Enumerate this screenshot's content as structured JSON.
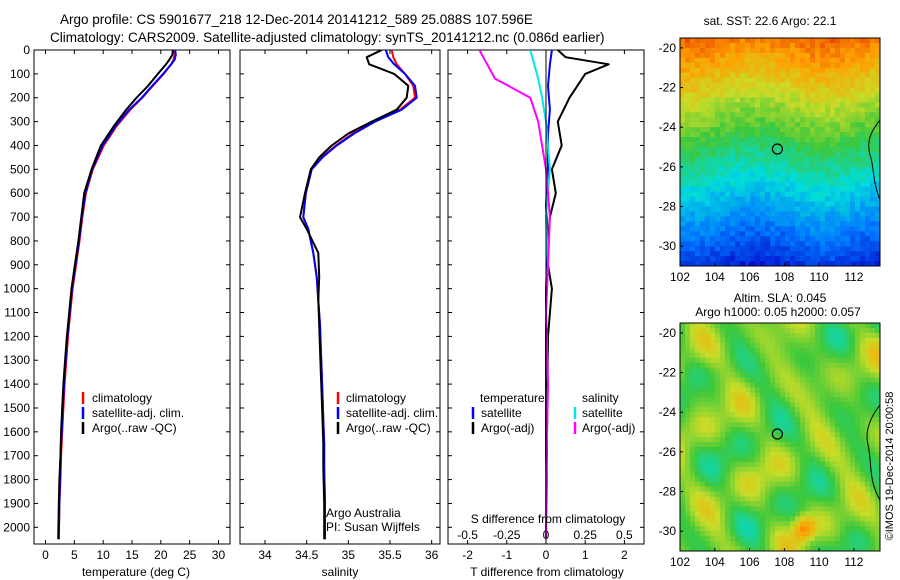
{
  "header": {
    "line1": "Argo profile: CS 5901677_218 12-Dec-2014 20141212_589 25.088S 107.596E",
    "line2": "Climatology: CARS2009. Satellite-adjusted climatology: synTS_20141212.nc (0.086d earlier)"
  },
  "side_credit": "©IMOS 19-Dec-2014 20:00:58",
  "colors": {
    "climatology": "#ff0000",
    "satellite": "#0000ff",
    "argo": "#000000",
    "salinity_satellite": "#00e5ee",
    "salinity_argo": "#ff00ff"
  },
  "chart_data": [
    {
      "type": "line",
      "xlabel": "temperature (deg C)",
      "ylabel": "",
      "xlim": [
        -2,
        32
      ],
      "ylim": [
        2070,
        0
      ],
      "xticks": [
        0,
        5,
        10,
        15,
        20,
        25,
        30
      ],
      "yticks": [
        0,
        100,
        200,
        300,
        400,
        500,
        600,
        700,
        800,
        900,
        1000,
        1100,
        1200,
        1300,
        1400,
        1500,
        1600,
        1700,
        1800,
        1900,
        2000
      ],
      "legend": [
        "climatology",
        "satellite-adj. clim.",
        "Argo(..raw -QC)"
      ],
      "series": [
        {
          "name": "climatology",
          "color": "#ff0000",
          "x": [
            22.3,
            22.4,
            22.2,
            21.8,
            20.5,
            18.6,
            16.8,
            14.7,
            12.3,
            11.5,
            10.1,
            8.2,
            7.0,
            6.4,
            5.9,
            5.3,
            4.7,
            4.3,
            3.9,
            3.6,
            3.3,
            3.1,
            2.9,
            2.7,
            2.6,
            2.4,
            2.3
          ],
          "y": [
            0,
            20,
            40,
            60,
            100,
            150,
            200,
            250,
            320,
            350,
            400,
            500,
            600,
            700,
            800,
            900,
            1000,
            1100,
            1200,
            1300,
            1400,
            1500,
            1600,
            1700,
            1800,
            1900,
            2050
          ]
        },
        {
          "name": "satellite-adj. clim.",
          "color": "#0000ff",
          "x": [
            22.5,
            22.6,
            22.4,
            21.8,
            20.4,
            18.5,
            16.7,
            14.5,
            12.1,
            11.3,
            9.9,
            8.1,
            6.9,
            6.3,
            5.8,
            5.2,
            4.6,
            4.2,
            3.8,
            3.5,
            3.2,
            3.0,
            2.8,
            2.6,
            2.5,
            2.4,
            2.3
          ],
          "y": [
            0,
            20,
            40,
            60,
            100,
            150,
            200,
            250,
            320,
            350,
            400,
            500,
            600,
            700,
            800,
            900,
            1000,
            1100,
            1200,
            1300,
            1400,
            1500,
            1600,
            1700,
            1800,
            1900,
            2050
          ]
        },
        {
          "name": "Argo(..raw -QC)",
          "color": "#000000",
          "x": [
            22.1,
            22.0,
            21.5,
            20.9,
            19.5,
            17.8,
            15.8,
            14.0,
            11.8,
            11.0,
            9.6,
            8.0,
            6.7,
            6.2,
            5.7,
            5.1,
            4.5,
            4.1,
            3.7,
            3.4,
            3.1,
            2.9,
            2.7,
            2.6,
            2.4,
            2.3,
            2.2
          ],
          "y": [
            0,
            20,
            40,
            60,
            100,
            150,
            200,
            250,
            320,
            350,
            400,
            500,
            600,
            700,
            800,
            900,
            1000,
            1100,
            1200,
            1300,
            1400,
            1500,
            1600,
            1700,
            1800,
            1900,
            2050
          ]
        }
      ]
    },
    {
      "type": "line",
      "xlabel": "salinity",
      "xlim": [
        33.7,
        36.1
      ],
      "ylim": [
        2070,
        0
      ],
      "xticks": [
        34,
        34.5,
        35,
        35.5,
        36
      ],
      "legend": [
        "climatology",
        "satellite-adj. clim.",
        "Argo(..raw -QC)"
      ],
      "credit": [
        "Argo Australia",
        "PI: Susan Wijffels"
      ],
      "series": [
        {
          "name": "climatology",
          "color": "#ff0000",
          "x": [
            35.52,
            35.54,
            35.58,
            35.68,
            35.78,
            35.8,
            35.62,
            35.3,
            35.05,
            34.85,
            34.68,
            34.56,
            34.49,
            34.46,
            34.52,
            34.58,
            34.62,
            34.64,
            34.66,
            34.67,
            34.68,
            34.69,
            34.7,
            34.71,
            34.71,
            34.72,
            34.72
          ],
          "y": [
            0,
            30,
            60,
            100,
            150,
            200,
            250,
            300,
            350,
            400,
            450,
            500,
            600,
            700,
            750,
            850,
            950,
            1050,
            1150,
            1250,
            1350,
            1450,
            1550,
            1650,
            1750,
            1900,
            2050
          ]
        },
        {
          "name": "satellite-adj. clim.",
          "color": "#0000ff",
          "x": [
            35.45,
            35.48,
            35.55,
            35.68,
            35.8,
            35.82,
            35.64,
            35.32,
            35.07,
            34.86,
            34.69,
            34.56,
            34.49,
            34.46,
            34.52,
            34.58,
            34.62,
            34.64,
            34.66,
            34.67,
            34.68,
            34.69,
            34.7,
            34.71,
            34.71,
            34.72,
            34.72
          ],
          "y": [
            0,
            30,
            60,
            100,
            150,
            200,
            250,
            300,
            350,
            400,
            450,
            500,
            600,
            700,
            750,
            850,
            950,
            1050,
            1150,
            1250,
            1350,
            1450,
            1550,
            1650,
            1750,
            1900,
            2050
          ]
        },
        {
          "name": "Argo(..raw -QC)",
          "color": "#000000",
          "x": [
            35.4,
            35.22,
            35.25,
            35.55,
            35.72,
            35.7,
            35.58,
            35.28,
            35.0,
            34.8,
            34.65,
            34.55,
            34.48,
            34.42,
            34.5,
            34.64,
            34.65,
            34.64,
            34.65,
            34.66,
            34.67,
            34.68,
            34.69,
            34.7,
            34.7,
            34.71,
            34.71
          ],
          "y": [
            0,
            30,
            60,
            100,
            150,
            200,
            250,
            300,
            350,
            400,
            450,
            500,
            600,
            700,
            750,
            850,
            950,
            1050,
            1150,
            1250,
            1350,
            1450,
            1550,
            1650,
            1750,
            1900,
            2050
          ]
        }
      ]
    },
    {
      "type": "line",
      "xlabel": "T difference from climatology",
      "xlabel_top": "S difference from climatology",
      "xlim": [
        -2.5,
        2.5
      ],
      "ylim": [
        2070,
        0
      ],
      "xticks": [
        -2,
        -1,
        0,
        1,
        2
      ],
      "xticks_top": [
        "-0.5",
        "-0.25",
        "0",
        "0.25",
        "0.5"
      ],
      "legend_titles": [
        "temperature",
        "salinity"
      ],
      "legend": [
        "satellite",
        "Argo(-adj)",
        "satellite",
        "Argo(-adj)"
      ],
      "series": [
        {
          "name": "satellite",
          "color": "#0000ff",
          "x": [
            0.15,
            0.1,
            0.05,
            0.1,
            0.05,
            0.05,
            0.0,
            0.05,
            0.0,
            0.0,
            0.0,
            0.0,
            0.0
          ],
          "y": [
            0,
            60,
            150,
            250,
            350,
            500,
            650,
            800,
            1000,
            1200,
            1500,
            1800,
            2050
          ]
        },
        {
          "name": "Argo(-adj)",
          "color": "#000000",
          "x": [
            0.3,
            0.5,
            1.6,
            1.0,
            0.8,
            0.6,
            0.3,
            0.4,
            0.15,
            0.25,
            0.1,
            0.05,
            0.05,
            0.15,
            0.05,
            0.0
          ],
          "y": [
            0,
            30,
            60,
            100,
            150,
            200,
            300,
            400,
            500,
            600,
            700,
            800,
            900,
            1000,
            1200,
            2050
          ]
        },
        {
          "name": "satellite",
          "color": "#00e5ee",
          "x": [
            -0.4,
            -0.3,
            -0.2,
            -0.1,
            0.0,
            0.1,
            0.0,
            0.05,
            0.0,
            0.05,
            0.0,
            0.0
          ],
          "y": [
            0,
            60,
            120,
            200,
            300,
            500,
            700,
            900,
            1100,
            1400,
            1800,
            2050
          ]
        },
        {
          "name": "Argo(-adj)",
          "color": "#ff00ff",
          "x": [
            -1.7,
            -1.5,
            -1.3,
            -0.4,
            -0.2,
            0.0,
            0.1,
            0.05,
            0.0,
            0.05,
            0.0,
            0.0
          ],
          "y": [
            0,
            60,
            120,
            200,
            300,
            500,
            700,
            900,
            1100,
            1400,
            1800,
            2050
          ]
        }
      ]
    },
    {
      "type": "heatmap",
      "title": "sat. SST: 22.6 Argo: 22.1",
      "xlim": [
        102,
        113.5
      ],
      "ylim": [
        -31,
        -19.5
      ],
      "xticks": [
        102,
        104,
        106,
        108,
        110,
        112
      ],
      "yticks": [
        -20,
        -22,
        -24,
        -26,
        -28,
        -30
      ],
      "marker": {
        "lon": 107.6,
        "lat": -25.1
      }
    },
    {
      "type": "heatmap",
      "title": "Altim. SLA: 0.045",
      "subtitle": "Argo h1000: 0.05 h2000: 0.057",
      "xlim": [
        102,
        113.5
      ],
      "ylim": [
        -31,
        -19.5
      ],
      "xticks": [
        102,
        104,
        106,
        108,
        110,
        112
      ],
      "yticks": [
        -20,
        -22,
        -24,
        -26,
        -28,
        -30
      ],
      "marker": {
        "lon": 107.6,
        "lat": -25.1
      }
    }
  ]
}
